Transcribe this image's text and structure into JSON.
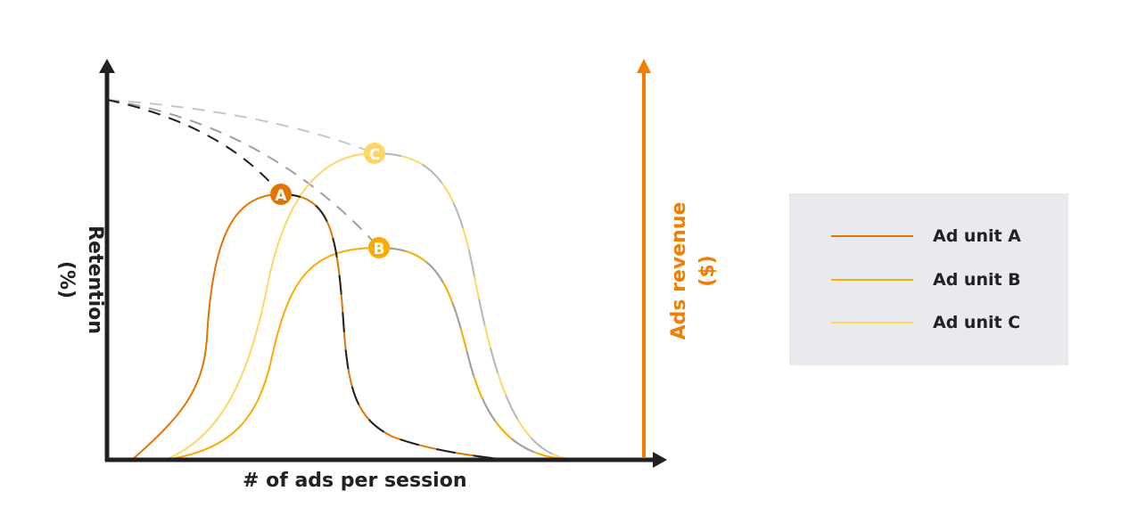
{
  "axes": {
    "x_label": "# of ads per session",
    "y_left_label_line1": "Retention",
    "y_left_label_line2": "(%)",
    "y_right_label_line1": "Ads revenue",
    "y_right_label_line2": "($)"
  },
  "markers": {
    "a": "A",
    "b": "B",
    "c": "C"
  },
  "legend": {
    "items": [
      {
        "label": "Ad unit A",
        "color": "#e37400"
      },
      {
        "label": "Ad unit B",
        "color": "#f9ab00"
      },
      {
        "label": "Ad unit C",
        "color": "#fdd663"
      }
    ]
  },
  "colors": {
    "axis": "#202124",
    "revenue_axis": "#f27d00",
    "retention_dash": "#9aa0a6"
  }
}
